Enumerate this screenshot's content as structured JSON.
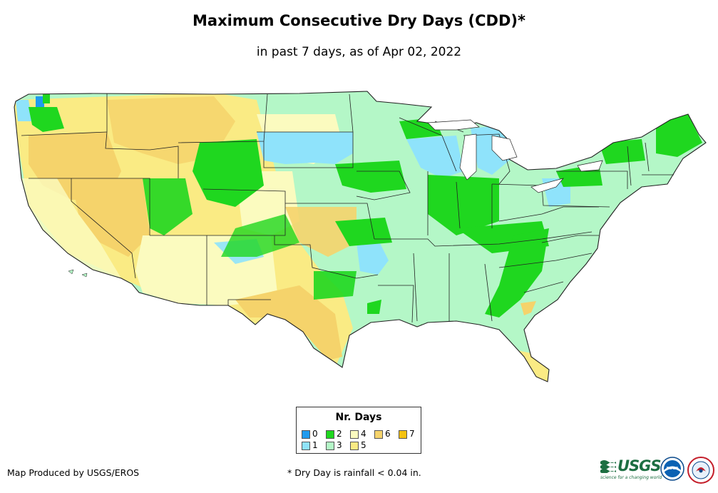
{
  "header": {
    "title": "Maximum Consecutive Dry Days (CDD)*",
    "subtitle": "in past 7 days, as of Apr 02, 2022"
  },
  "legend": {
    "title": "Nr. Days",
    "items": [
      {
        "label": "0",
        "color": "#1f9bee"
      },
      {
        "label": "1",
        "color": "#8fe3fb"
      },
      {
        "label": "2",
        "color": "#1fd71f"
      },
      {
        "label": "3",
        "color": "#b4f7c7"
      },
      {
        "label": "4",
        "color": "#fbfbbf"
      },
      {
        "label": "5",
        "color": "#faeb84"
      },
      {
        "label": "6",
        "color": "#f5d36b"
      },
      {
        "label": "7",
        "color": "#f5c210"
      }
    ]
  },
  "footer": {
    "producer": "Map Produced by USGS/EROS",
    "footnote": "* Dry Day is rainfall < 0.04 in.",
    "usgs_text": "USGS",
    "usgs_tagline": "science for a changing world",
    "noaa_text": "noaa"
  },
  "colors": {
    "border": "#222222"
  }
}
